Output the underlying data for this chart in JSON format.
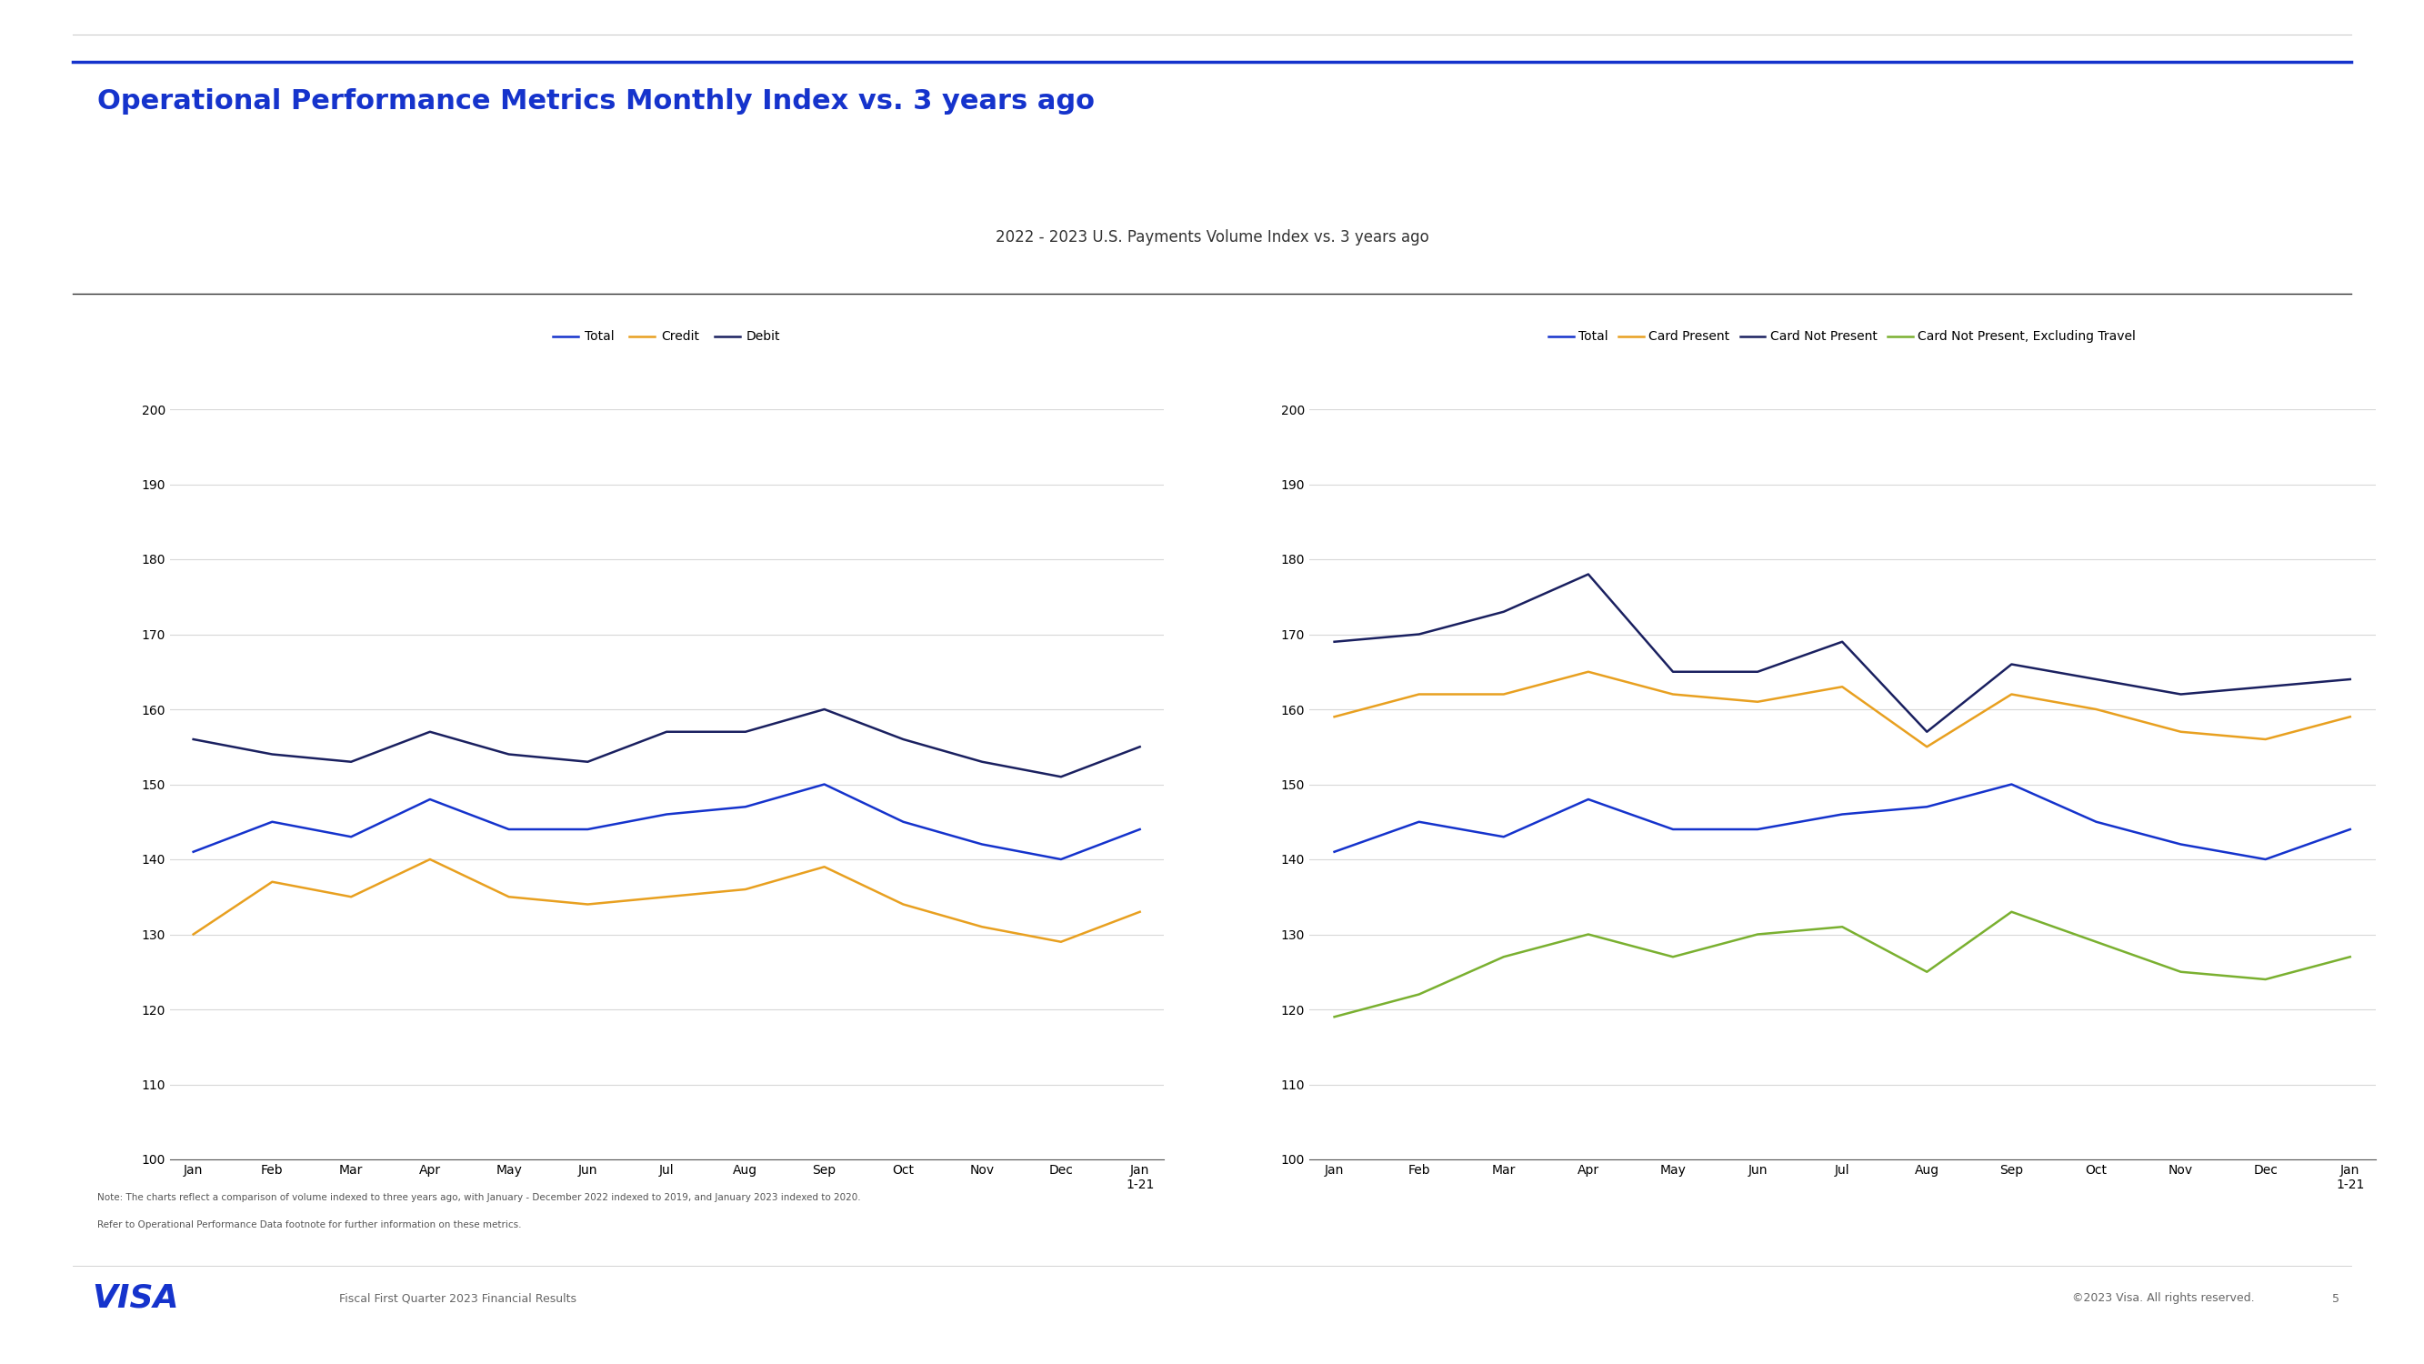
{
  "title": "Operational Performance Metrics Monthly Index vs. 3 years ago",
  "subtitle": "2022 - 2023 U.S. Payments Volume Index vs. 3 years ago",
  "title_color": "#1533cc",
  "subtitle_color": "#333333",
  "background_color": "#ffffff",
  "x_labels": [
    "Jan",
    "Feb",
    "Mar",
    "Apr",
    "May",
    "Jun",
    "Jul",
    "Aug",
    "Sep",
    "Oct",
    "Nov",
    "Dec",
    "Jan\n1-21"
  ],
  "ylim": [
    100,
    200
  ],
  "yticks": [
    100,
    110,
    120,
    130,
    140,
    150,
    160,
    170,
    180,
    190,
    200
  ],
  "left_chart": {
    "legend": [
      "Total",
      "Credit",
      "Debit"
    ],
    "legend_colors": [
      "#1533cc",
      "#e8a020",
      "#1a2060"
    ],
    "total": [
      141,
      145,
      143,
      148,
      144,
      144,
      146,
      147,
      150,
      145,
      142,
      140,
      144
    ],
    "credit": [
      130,
      137,
      135,
      140,
      135,
      134,
      135,
      136,
      139,
      134,
      131,
      129,
      133
    ],
    "debit": [
      156,
      154,
      153,
      157,
      154,
      153,
      157,
      157,
      160,
      156,
      153,
      151,
      155
    ]
  },
  "right_chart": {
    "legend": [
      "Total",
      "Card Present",
      "Card Not Present",
      "Card Not Present, Excluding Travel"
    ],
    "legend_colors": [
      "#1533cc",
      "#e8a020",
      "#1a2060",
      "#7ab030"
    ],
    "total": [
      141,
      145,
      143,
      148,
      144,
      144,
      146,
      147,
      150,
      145,
      142,
      140,
      144
    ],
    "card_present": [
      159,
      162,
      162,
      165,
      162,
      161,
      163,
      155,
      162,
      160,
      157,
      156,
      159
    ],
    "card_not_present": [
      169,
      170,
      173,
      178,
      165,
      165,
      169,
      157,
      166,
      164,
      162,
      163,
      164
    ],
    "card_not_present_excl_travel": [
      119,
      122,
      127,
      130,
      127,
      130,
      131,
      125,
      133,
      129,
      125,
      124,
      127
    ]
  },
  "note1": "Note: The charts reflect a comparison of volume indexed to three years ago, with January - December 2022 indexed to 2019, and January 2023 indexed to 2020.",
  "note2": "Refer to Operational Performance Data footnote for further information on these metrics.",
  "footer_left": "Fiscal First Quarter 2023 Financial Results",
  "footer_right": "©2023 Visa. All rights reserved.",
  "footer_page": "5",
  "line_width": 1.8,
  "header_line_color": "#1533cc",
  "divider_line_color": "#333333"
}
